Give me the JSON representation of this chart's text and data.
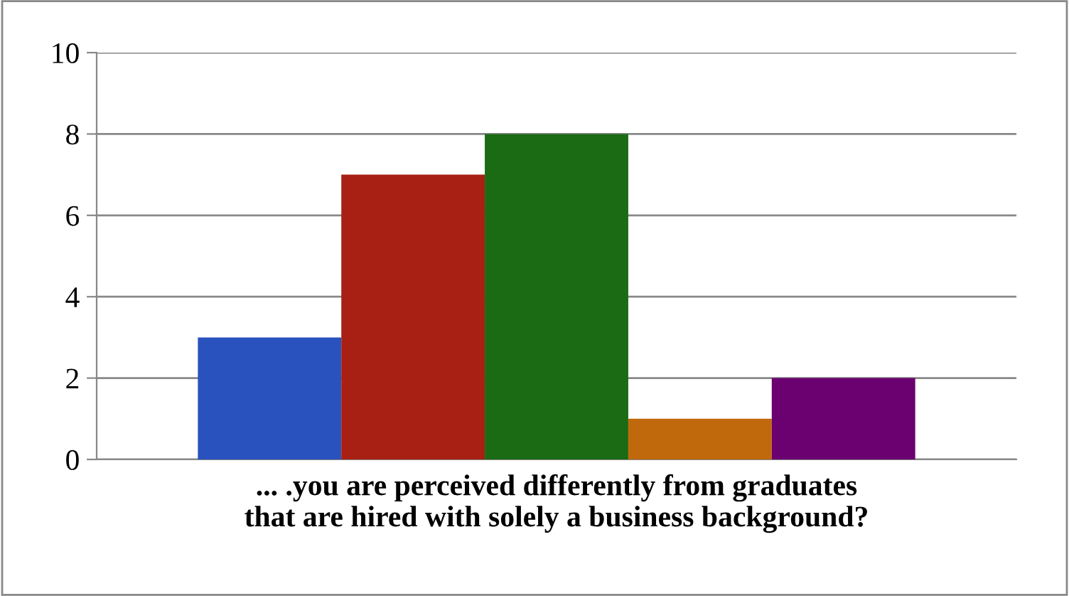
{
  "chart_data": {
    "type": "bar",
    "xlabel": "... .you are perceived differently from graduates\nthat are hired with solely a business background?",
    "categories": [
      null
    ],
    "series": [
      {
        "color": "#2a52be",
        "values": [
          3
        ]
      },
      {
        "color": "#a82014",
        "values": [
          7
        ]
      },
      {
        "color": "#1a6b14",
        "values": [
          8
        ]
      },
      {
        "color": "#c0690c",
        "values": [
          1
        ]
      },
      {
        "color": "#6b0070",
        "values": [
          2
        ]
      }
    ],
    "ylim": [
      0,
      10
    ],
    "yticks": [
      0,
      2,
      4,
      6,
      8,
      10
    ],
    "grid": "y",
    "legend": false
  }
}
